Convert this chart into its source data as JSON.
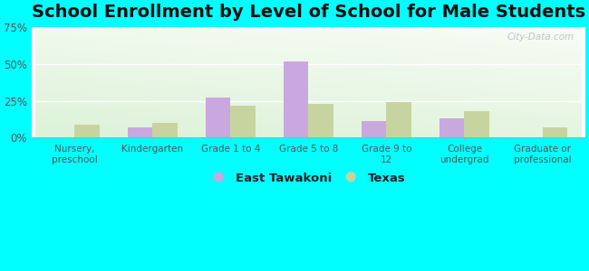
{
  "title": "School Enrollment by Level of School for Male Students",
  "categories": [
    "Nursery,\npreschool",
    "Kindergarten",
    "Grade 1 to 4",
    "Grade 5 to 8",
    "Grade 9 to\n12",
    "College\nundergrad",
    "Graduate or\nprofessional"
  ],
  "east_tawakoni": [
    0,
    7,
    27,
    52,
    11,
    13,
    0
  ],
  "texas": [
    9,
    10,
    22,
    23,
    24,
    18,
    7
  ],
  "bar_color_et": "#c9a8e0",
  "bar_color_tx": "#c8d4a0",
  "background_color": "#00ffff",
  "ylim": [
    0,
    75
  ],
  "yticks": [
    0,
    25,
    50,
    75
  ],
  "ytick_labels": [
    "0%",
    "25%",
    "50%",
    "75%"
  ],
  "title_fontsize": 14,
  "legend_labels": [
    "East Tawakoni",
    "Texas"
  ],
  "bar_width": 0.32
}
